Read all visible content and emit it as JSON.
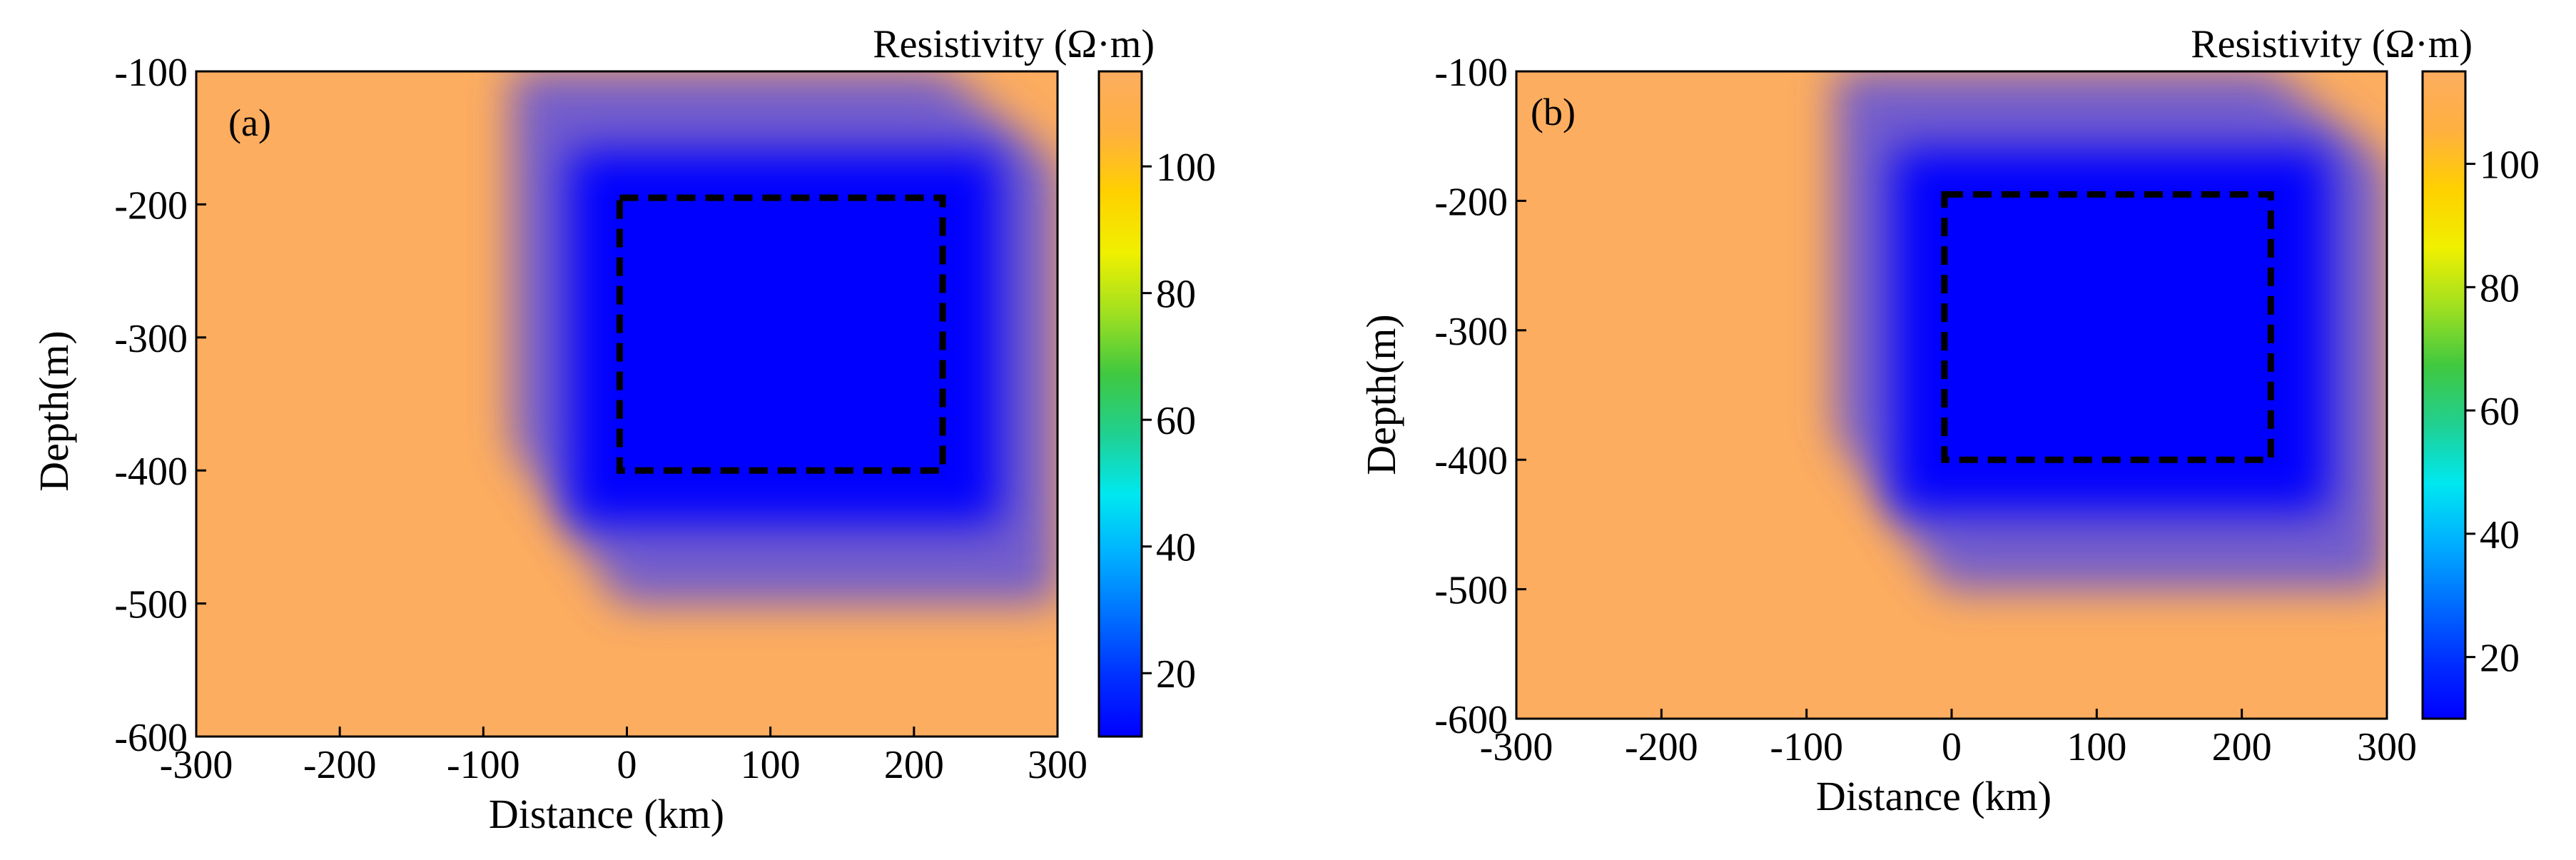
{
  "chart_data": [
    {
      "type": "heatmap",
      "panel_label": "(a)",
      "xlabel": "Distance (km)",
      "ylabel": "Depth(m)",
      "xlim": [
        -300,
        300
      ],
      "ylim": [
        -600,
        -100
      ],
      "xticks": [
        "-300",
        "-200",
        "-100",
        "0",
        "100",
        "200",
        "300"
      ],
      "yticks": [
        "-100",
        "-200",
        "-300",
        "-400",
        "-500",
        "-600"
      ],
      "colorbar": {
        "title": "Resistivity (Ω·m)",
        "range": [
          10,
          115
        ],
        "ticks": [
          "20",
          "40",
          "60",
          "80",
          "100"
        ]
      },
      "background_resistivity": 115,
      "anomaly": {
        "x": [
          0,
          220
        ],
        "depth": [
          -200,
          -400
        ],
        "resistivity": 10
      },
      "smoothed_region": {
        "x": [
          -80,
          300
        ],
        "depth": [
          -100,
          -500
        ]
      },
      "dashed_box": {
        "x": [
          -5,
          220
        ],
        "depth": [
          -195,
          -400
        ]
      }
    },
    {
      "type": "heatmap",
      "panel_label": "(b)",
      "xlabel": "Distance (km)",
      "ylabel": "Depth(m)",
      "xlim": [
        -300,
        300
      ],
      "ylim": [
        -600,
        -100
      ],
      "xticks": [
        "-300",
        "-200",
        "-100",
        "0",
        "100",
        "200",
        "300"
      ],
      "yticks": [
        "-100",
        "-200",
        "-300",
        "-400",
        "-500",
        "-600"
      ],
      "colorbar": {
        "title": "Resistivity (Ω·m)",
        "range": [
          10,
          115
        ],
        "ticks": [
          "20",
          "40",
          "60",
          "80",
          "100"
        ]
      },
      "background_resistivity": 115,
      "anomaly": {
        "x": [
          0,
          220
        ],
        "depth": [
          -200,
          -400
        ],
        "resistivity": 10
      },
      "smoothed_region": {
        "x": [
          -80,
          300
        ],
        "depth": [
          -100,
          -500
        ]
      },
      "dashed_box": {
        "x": [
          -5,
          220
        ],
        "depth": [
          -195,
          -400
        ]
      }
    }
  ],
  "colors": {
    "background": "#FDAD5F",
    "anomaly": "#0000FF",
    "colormap": [
      "#0000FF",
      "#0030FF",
      "#0070FF",
      "#00B0FF",
      "#00E8F0",
      "#20D090",
      "#40C840",
      "#A0E020",
      "#F0F000",
      "#FFD000",
      "#FFB040",
      "#FDAD5F"
    ]
  }
}
